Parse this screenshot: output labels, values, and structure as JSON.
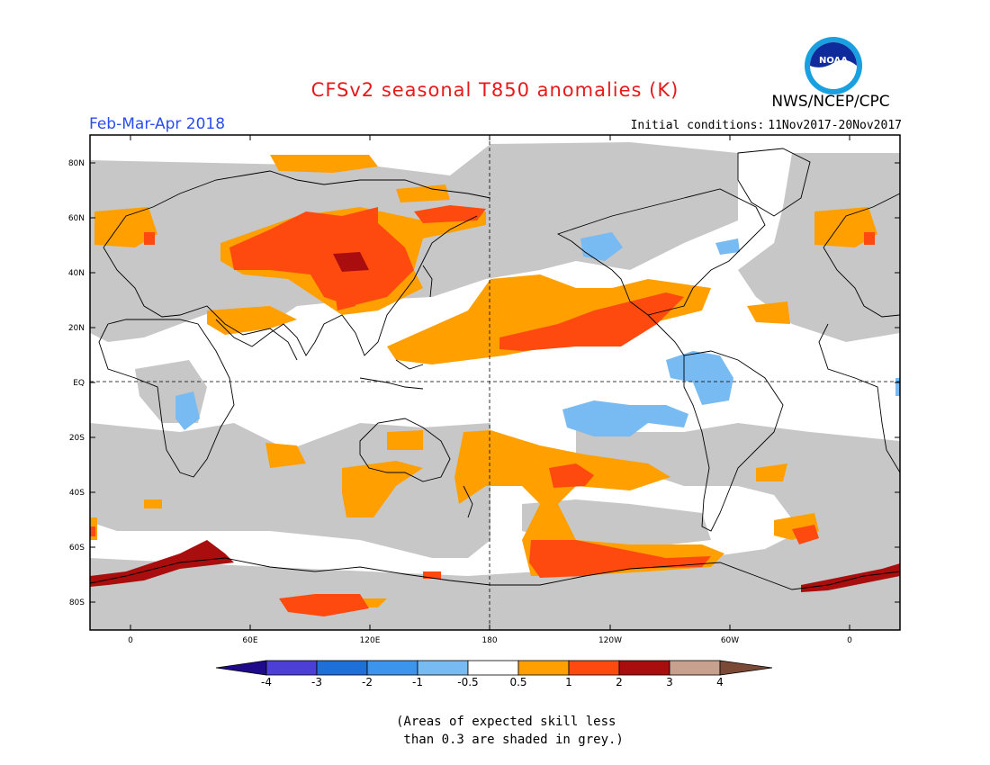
{
  "title": "CFSv2 seasonal T850 anomalies (K)",
  "agency": "NWS/NCEP/CPC",
  "logo_text": "NOAA",
  "period": "Feb-Mar-Apr 2018",
  "initial_conditions": {
    "label": "Initial conditions:",
    "value": "11Nov2017-20Nov2017"
  },
  "lat_labels": [
    "80N",
    "60N",
    "40N",
    "20N",
    "EQ",
    "20S",
    "40S",
    "60S",
    "80S"
  ],
  "lon_labels": [
    "0",
    "60E",
    "120E",
    "180",
    "120W",
    "60W",
    "0"
  ],
  "colorbar": {
    "labels": [
      "-4",
      "-3",
      "-2",
      "-1",
      "-0.5",
      "0.5",
      "1",
      "2",
      "3",
      "4"
    ],
    "colors": [
      "#1f0a8a",
      "#4b3fd6",
      "#1f6fd9",
      "#3d94ec",
      "#78baf2",
      "#ffffff",
      "#ff9f00",
      "#ff4a0f",
      "#a90d0d",
      "#c8a08e",
      "#7a4a37"
    ]
  },
  "skill_note": "(Areas of expected skill less\n than 0.3 are shaded in grey.)",
  "colors": {
    "grey": "#c7c7c7",
    "orange": "#ff9f00",
    "red": "#ff4a0f",
    "darkred": "#a90d0d",
    "lightblue": "#78baf2",
    "title": "#e8191b",
    "period": "#2a4cf0"
  }
}
